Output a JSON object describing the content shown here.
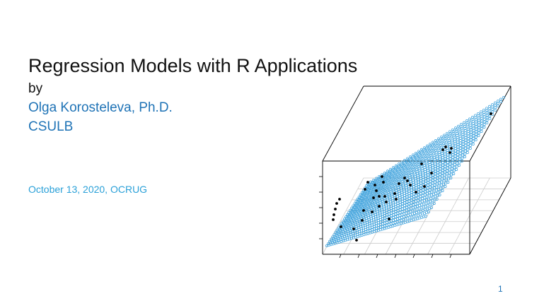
{
  "slide": {
    "title": "Regression Models with R Applications",
    "by": "by",
    "author": "Olga Korosteleva, Ph.D.",
    "organization": "CSULB",
    "date": "October 13, 2020, OCRUG",
    "page_number": "1"
  },
  "figure": {
    "description_icon": "3d-regression-plane-plot",
    "plane_color": "#3aa0dc",
    "point_color": "#000000",
    "box_color": "#000000"
  }
}
